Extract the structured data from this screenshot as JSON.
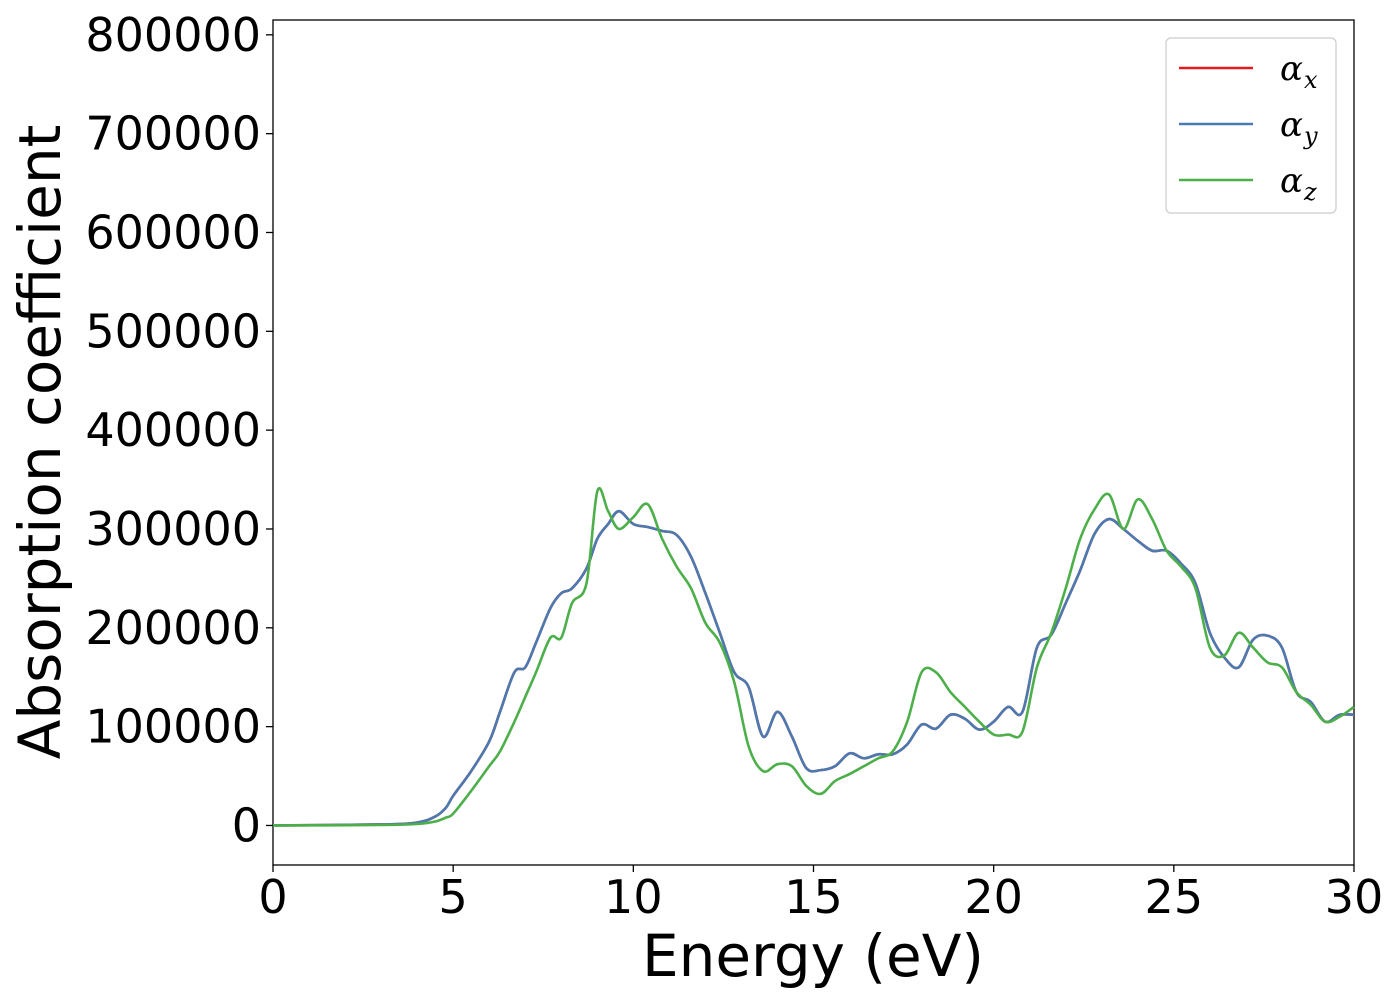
{
  "chart_data": {
    "type": "line",
    "title": "",
    "xlabel": "Energy (eV)",
    "ylabel": "Absorption coefficient",
    "xlim": [
      0,
      30
    ],
    "ylim": [
      -40000,
      815000
    ],
    "xticks": [
      0,
      5,
      10,
      15,
      20,
      25,
      30
    ],
    "xtick_labels": [
      "0",
      "5",
      "10",
      "15",
      "20",
      "25",
      "30"
    ],
    "yticks": [
      0,
      100000,
      200000,
      300000,
      400000,
      500000,
      600000,
      700000,
      800000
    ],
    "ytick_labels": [
      "0",
      "100000",
      "200000",
      "300000",
      "400000",
      "500000",
      "600000",
      "700000",
      "800000"
    ],
    "grid": false,
    "legend_position": "top-right",
    "series": [
      {
        "name": "α",
        "subscript": "x",
        "color": "#e41a1c",
        "x": [
          0,
          3,
          4,
          4.5,
          4.8,
          5.0,
          5.5,
          6.0,
          6.3,
          6.7,
          7.0,
          7.3,
          7.7,
          8.0,
          8.3,
          8.7,
          9.0,
          9.3,
          9.6,
          10.0,
          10.4,
          10.8,
          11.2,
          11.6,
          12.0,
          12.4,
          12.8,
          13.2,
          13.6,
          14.0,
          14.4,
          14.8,
          15.2,
          15.6,
          16.0,
          16.4,
          16.8,
          17.2,
          17.6,
          18.0,
          18.4,
          18.8,
          19.2,
          19.6,
          20.0,
          20.4,
          20.8,
          21.2,
          21.6,
          22.0,
          22.4,
          22.8,
          23.2,
          23.6,
          24.0,
          24.4,
          24.8,
          25.2,
          25.6,
          26.0,
          26.4,
          26.8,
          27.2,
          27.6,
          28.0,
          28.4,
          28.8,
          29.2,
          29.6,
          30.0
        ],
        "values": [
          0,
          1000,
          3000,
          9000,
          18000,
          30000,
          55000,
          85000,
          115000,
          155000,
          160000,
          185000,
          220000,
          235000,
          240000,
          260000,
          290000,
          305000,
          318000,
          305000,
          302000,
          298000,
          294000,
          272000,
          235000,
          195000,
          155000,
          140000,
          90000,
          115000,
          90000,
          58000,
          56000,
          60000,
          73000,
          68000,
          72000,
          72000,
          82000,
          102000,
          98000,
          112000,
          108000,
          97000,
          105000,
          120000,
          115000,
          180000,
          193000,
          225000,
          258000,
          295000,
          310000,
          300000,
          288000,
          278000,
          278000,
          265000,
          245000,
          195000,
          170000,
          160000,
          188000,
          192000,
          180000,
          135000,
          125000,
          105000,
          112000,
          112000
        ]
      },
      {
        "name": "α",
        "subscript": "y",
        "color": "#4a7ab0",
        "x": [
          0,
          3,
          4,
          4.5,
          4.8,
          5.0,
          5.5,
          6.0,
          6.3,
          6.7,
          7.0,
          7.3,
          7.7,
          8.0,
          8.3,
          8.7,
          9.0,
          9.3,
          9.6,
          10.0,
          10.4,
          10.8,
          11.2,
          11.6,
          12.0,
          12.4,
          12.8,
          13.2,
          13.6,
          14.0,
          14.4,
          14.8,
          15.2,
          15.6,
          16.0,
          16.4,
          16.8,
          17.2,
          17.6,
          18.0,
          18.4,
          18.8,
          19.2,
          19.6,
          20.0,
          20.4,
          20.8,
          21.2,
          21.6,
          22.0,
          22.4,
          22.8,
          23.2,
          23.6,
          24.0,
          24.4,
          24.8,
          25.2,
          25.6,
          26.0,
          26.4,
          26.8,
          27.2,
          27.6,
          28.0,
          28.4,
          28.8,
          29.2,
          29.6,
          30.0
        ],
        "values": [
          0,
          1000,
          3000,
          9000,
          18000,
          30000,
          55000,
          85000,
          115000,
          155000,
          160000,
          185000,
          220000,
          235000,
          240000,
          260000,
          290000,
          305000,
          318000,
          305000,
          302000,
          298000,
          294000,
          272000,
          235000,
          195000,
          155000,
          140000,
          90000,
          115000,
          90000,
          58000,
          56000,
          60000,
          73000,
          68000,
          72000,
          72000,
          82000,
          102000,
          98000,
          112000,
          108000,
          97000,
          105000,
          120000,
          115000,
          180000,
          193000,
          225000,
          258000,
          295000,
          310000,
          300000,
          288000,
          278000,
          278000,
          265000,
          245000,
          195000,
          170000,
          160000,
          188000,
          192000,
          180000,
          135000,
          125000,
          105000,
          112000,
          112000
        ]
      },
      {
        "name": "α",
        "subscript": "z",
        "color": "#4daf4a",
        "x": [
          0,
          3,
          4,
          4.5,
          4.8,
          5.0,
          5.5,
          6.0,
          6.3,
          6.7,
          7.0,
          7.3,
          7.7,
          8.0,
          8.3,
          8.7,
          9.0,
          9.3,
          9.6,
          10.0,
          10.4,
          10.8,
          11.2,
          11.6,
          12.0,
          12.4,
          12.8,
          13.2,
          13.6,
          14.0,
          14.4,
          14.8,
          15.2,
          15.6,
          16.0,
          16.4,
          16.8,
          17.2,
          17.6,
          18.0,
          18.4,
          18.8,
          19.2,
          19.6,
          20.0,
          20.4,
          20.8,
          21.2,
          21.6,
          22.0,
          22.4,
          22.8,
          23.2,
          23.6,
          24.0,
          24.4,
          24.8,
          25.2,
          25.6,
          26.0,
          26.4,
          26.8,
          27.2,
          27.6,
          28.0,
          28.4,
          28.8,
          29.2,
          29.6,
          30.0
        ],
        "values": [
          0,
          500,
          1500,
          4000,
          8000,
          12000,
          35000,
          60000,
          75000,
          105000,
          130000,
          155000,
          190000,
          190000,
          225000,
          245000,
          338000,
          318000,
          300000,
          312000,
          325000,
          290000,
          262000,
          240000,
          205000,
          185000,
          145000,
          80000,
          55000,
          62000,
          60000,
          40000,
          32000,
          45000,
          52000,
          60000,
          68000,
          75000,
          105000,
          155000,
          155000,
          135000,
          120000,
          105000,
          92000,
          92000,
          95000,
          160000,
          195000,
          240000,
          290000,
          320000,
          335000,
          300000,
          330000,
          310000,
          278000,
          262000,
          240000,
          180000,
          172000,
          195000,
          180000,
          165000,
          160000,
          135000,
          122000,
          105000,
          110000,
          120000
        ]
      }
    ]
  }
}
